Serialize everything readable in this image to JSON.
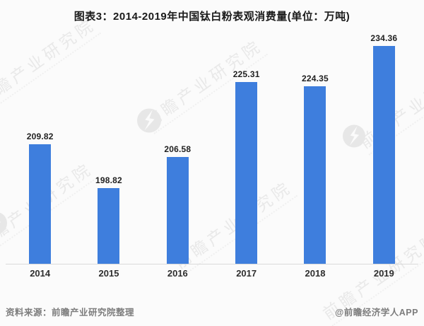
{
  "title": "图表3：2014-2019年中国钛白粉表观消费量(单位：万吨)",
  "chart_data": {
    "type": "bar",
    "categories": [
      "2014",
      "2015",
      "2016",
      "2017",
      "2018",
      "2019"
    ],
    "values": [
      209.82,
      198.82,
      206.58,
      225.31,
      224.35,
      234.36
    ],
    "title": "图表3：2014-2019年中国钛白粉表观消费量(单位：万吨)",
    "xlabel": "",
    "ylabel": "",
    "unit": "万吨",
    "ylim": [
      180,
      240
    ],
    "grid": false,
    "legend": "none",
    "value_labels": true,
    "bar_color": "#3e7edd"
  },
  "watermark": {
    "text": "前瞻产业研究院"
  },
  "footer": {
    "source": "资料来源：前瞻产业研究院整理",
    "credit": "@前瞻经济学人APP"
  }
}
